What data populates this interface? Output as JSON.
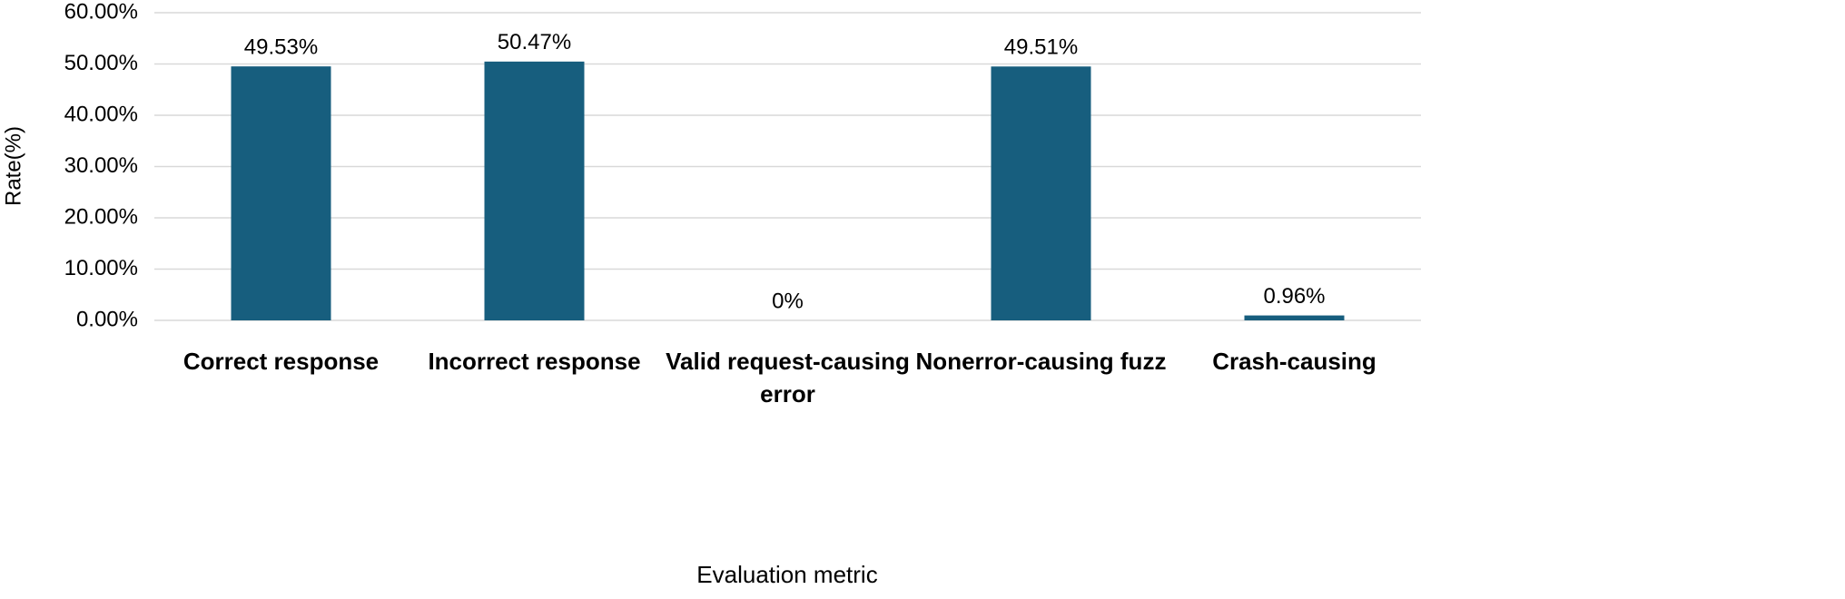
{
  "chart_data": {
    "type": "bar",
    "x_label": "Evaluation metric",
    "y_label": "Rate(%)",
    "categories": [
      "Correct response",
      "Incorrect response",
      "Valid request-causing error",
      "Nonerror-causing fuzz",
      "Crash-causing"
    ],
    "values": [
      49.53,
      50.47,
      0,
      49.51,
      0.96
    ],
    "value_labels": [
      "49.53%",
      "50.47%",
      "0%",
      "49.51%",
      "0.96%"
    ],
    "color": "#175e7e",
    "ylim": [
      0,
      60
    ],
    "yticks": [
      {
        "value": 0,
        "label": "0.00%"
      },
      {
        "value": 10,
        "label": "10.00%"
      },
      {
        "value": 20,
        "label": "20.00%"
      },
      {
        "value": 30,
        "label": "30.00%"
      },
      {
        "value": 40,
        "label": "40.00%"
      },
      {
        "value": 50,
        "label": "50.00%"
      },
      {
        "value": 60,
        "label": "60.00%"
      }
    ],
    "grid": true
  }
}
